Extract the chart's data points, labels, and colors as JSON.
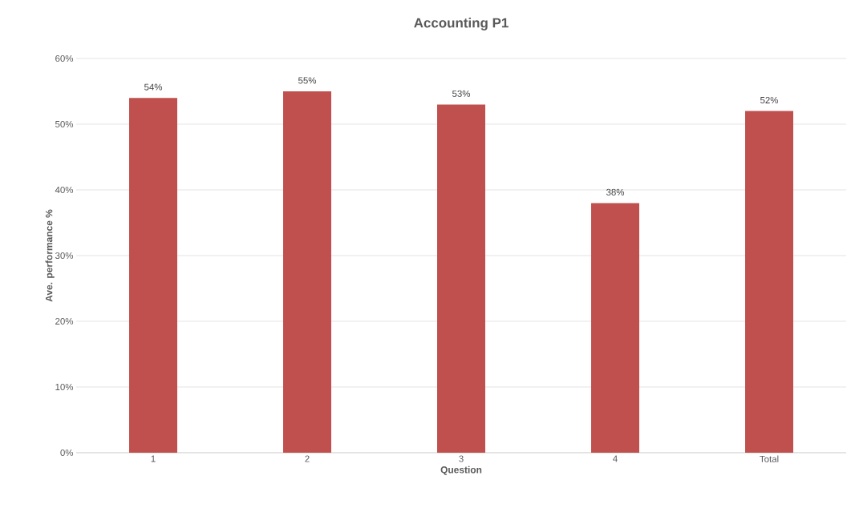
{
  "chart_data": {
    "type": "bar",
    "title": "Accounting P1",
    "xlabel": "Question",
    "ylabel": "Ave. performance %",
    "categories": [
      "1",
      "2",
      "3",
      "4",
      "Total"
    ],
    "values": [
      54,
      55,
      53,
      38,
      52
    ],
    "value_labels": [
      "54%",
      "55%",
      "53%",
      "38%",
      "52%"
    ],
    "color": "#c0504d",
    "ylim": [
      0,
      60
    ],
    "yticks": [
      {
        "value": 0,
        "label": "0%"
      },
      {
        "value": 10,
        "label": "10%"
      },
      {
        "value": 20,
        "label": "20%"
      },
      {
        "value": 30,
        "label": "30%"
      },
      {
        "value": 40,
        "label": "40%"
      },
      {
        "value": 50,
        "label": "50%"
      },
      {
        "value": 60,
        "label": "60%"
      }
    ],
    "grid": "y"
  }
}
